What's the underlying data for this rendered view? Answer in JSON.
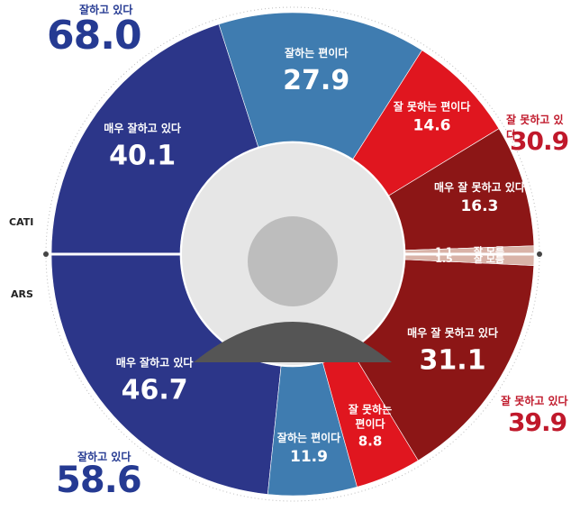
{
  "labels": {
    "cati": "CATI",
    "ars": "ARS",
    "good_total": "잘하고 있다",
    "bad_total": "잘 못하고 있다"
  },
  "colors": {
    "very_good": "#2c3689",
    "good": "#3f7cb0",
    "bad": "#e0161f",
    "very_bad": "#8c1616",
    "dont_know": "#d9b3a8",
    "center": "#e6e6e6",
    "blue_text": "#253a92",
    "red_text": "#c0192b"
  },
  "chart_data": [
    {
      "type": "pie",
      "method": "CATI",
      "categories": [
        "매우 잘하고 있다",
        "잘하는 편이다",
        "잘 못하는 편이다",
        "매우 잘 못하고 있다",
        "잘 모름"
      ],
      "values": [
        40.1,
        27.9,
        14.6,
        16.3,
        1.1
      ],
      "totals": {
        "good": "68.0",
        "bad": "30.9"
      }
    },
    {
      "type": "pie",
      "method": "ARS",
      "categories": [
        "매우 잘하고 있다",
        "잘하는 편이다",
        "잘 못하는 편이다",
        "매우 잘 못하고 있다",
        "잘 모름"
      ],
      "values": [
        46.7,
        11.9,
        8.8,
        31.1,
        1.5
      ],
      "totals": {
        "good": "58.6",
        "bad": "39.9"
      }
    }
  ],
  "segments": {
    "cati": [
      {
        "label": "매우 잘하고 있다",
        "value": "40.1"
      },
      {
        "label": "잘하는 편이다",
        "value": "27.9"
      },
      {
        "label": "잘 못하는 편이다",
        "value": "14.6"
      },
      {
        "label": "매우 잘 못하고 있다",
        "value": "16.3"
      },
      {
        "label": "잘 모름",
        "value": "1.1"
      }
    ],
    "ars": [
      {
        "label": "매우 잘하고 있다",
        "value": "46.7"
      },
      {
        "label": "잘하는 편이다",
        "value": "11.9"
      },
      {
        "label": "잘 못하는",
        "label2": "편이다",
        "value": "8.8"
      },
      {
        "label": "매우 잘 못하고 있다",
        "value": "31.1"
      },
      {
        "label": "잘 모름",
        "value": "1.5"
      }
    ]
  }
}
